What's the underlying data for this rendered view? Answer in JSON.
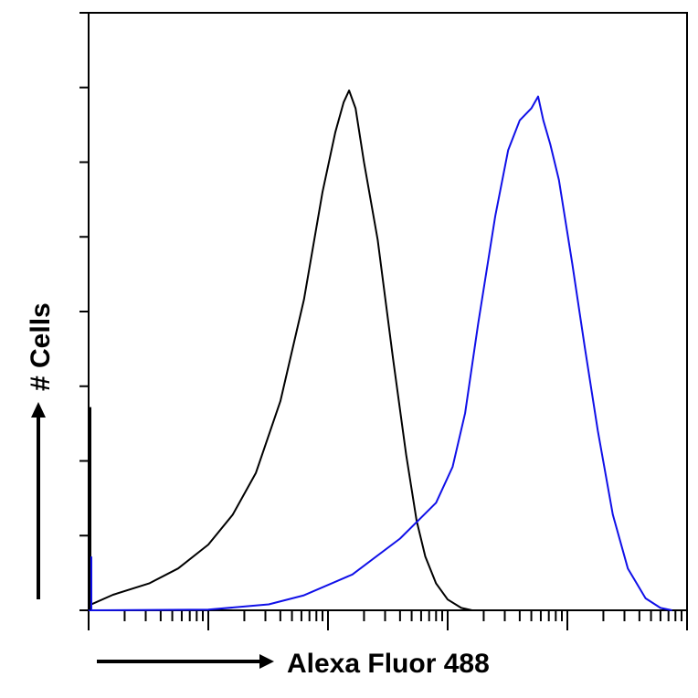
{
  "chart_data": {
    "type": "line",
    "xlabel": "Alexa Fluor 488",
    "ylabel": "# Cells",
    "x_scale": "log",
    "xlim": [
      1,
      100000
    ],
    "ylim": [
      0,
      100
    ],
    "grid": false,
    "legend": "none",
    "x_major_ticks": [
      1,
      10,
      100,
      1000,
      10000,
      100000
    ],
    "y_ticks": [
      0,
      12.5,
      25,
      37.5,
      50,
      62.5,
      75,
      87.5,
      100
    ],
    "series": [
      {
        "color": "#000000",
        "points": [
          [
            1,
            0.8
          ],
          [
            1.6,
            2.6
          ],
          [
            3.2,
            4.5
          ],
          [
            5.6,
            7
          ],
          [
            10,
            11
          ],
          [
            16,
            16
          ],
          [
            25,
            23
          ],
          [
            40,
            35
          ],
          [
            63,
            52
          ],
          [
            90,
            70
          ],
          [
            115,
            80
          ],
          [
            135,
            85
          ],
          [
            150,
            87
          ],
          [
            170,
            84
          ],
          [
            200,
            75
          ],
          [
            260,
            62
          ],
          [
            350,
            42
          ],
          [
            450,
            26
          ],
          [
            550,
            15
          ],
          [
            650,
            9
          ],
          [
            800,
            4.5
          ],
          [
            1000,
            1.8
          ],
          [
            1300,
            0.4
          ],
          [
            1600,
            0
          ]
        ]
      },
      {
        "color": "#1010e8",
        "points": [
          [
            1,
            0
          ],
          [
            10,
            0.1
          ],
          [
            32,
            1
          ],
          [
            63,
            2.5
          ],
          [
            160,
            6
          ],
          [
            400,
            12
          ],
          [
            800,
            18
          ],
          [
            1100,
            24
          ],
          [
            1400,
            33
          ],
          [
            1800,
            48
          ],
          [
            2500,
            66
          ],
          [
            3200,
            77
          ],
          [
            4000,
            82
          ],
          [
            5000,
            84
          ],
          [
            5700,
            86
          ],
          [
            6300,
            82
          ],
          [
            7200,
            78
          ],
          [
            8500,
            72
          ],
          [
            11000,
            58
          ],
          [
            14000,
            44
          ],
          [
            18000,
            30
          ],
          [
            24000,
            16
          ],
          [
            32000,
            7
          ],
          [
            45000,
            2
          ],
          [
            60000,
            0.4
          ],
          [
            75000,
            0
          ]
        ]
      }
    ]
  }
}
